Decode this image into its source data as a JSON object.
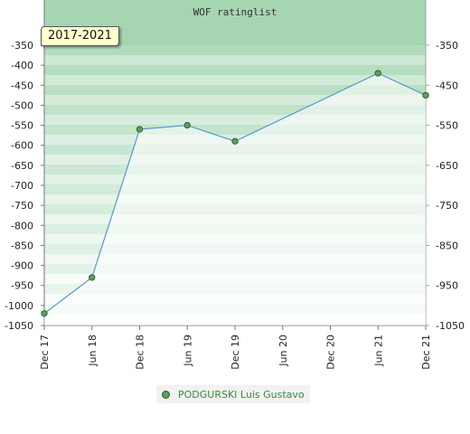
{
  "chart_data": {
    "type": "line",
    "title": "WOF ratinglist",
    "period_label": "2017-2021",
    "x": [
      "Dec 17",
      "Jun 18",
      "Dec 18",
      "Jun 19",
      "Dec 19",
      "Jun 20",
      "Dec 20",
      "Jun 21",
      "Dec 21"
    ],
    "y_ticks": [
      -350,
      -400,
      -450,
      -500,
      -550,
      -600,
      -650,
      -700,
      -750,
      -800,
      -850,
      -900,
      -950,
      -1000,
      -1050
    ],
    "y_ticks_right": [
      -350,
      -450,
      -550,
      -650,
      -750,
      -850,
      -950,
      -1050
    ],
    "ylim": [
      -1050,
      -350
    ],
    "series": [
      {
        "name": "PODGURSKI Luis Gustavo",
        "points": [
          {
            "x": "Dec 17",
            "y": -1020
          },
          {
            "x": "Jun 18",
            "y": -930
          },
          {
            "x": "Dec 18",
            "y": -560
          },
          {
            "x": "Jun 19",
            "y": -550
          },
          {
            "x": "Dec 19",
            "y": -590
          },
          {
            "x": "Jun 21",
            "y": -420
          },
          {
            "x": "Dec 21",
            "y": -475
          }
        ]
      }
    ],
    "grid": true,
    "legend_position": "bottom-center",
    "colors": {
      "line": "#5599cc",
      "marker": "#5aa05a",
      "band_dark": "#78c08a",
      "band_light": "#ffffff",
      "header": "#a6d5b2"
    }
  }
}
